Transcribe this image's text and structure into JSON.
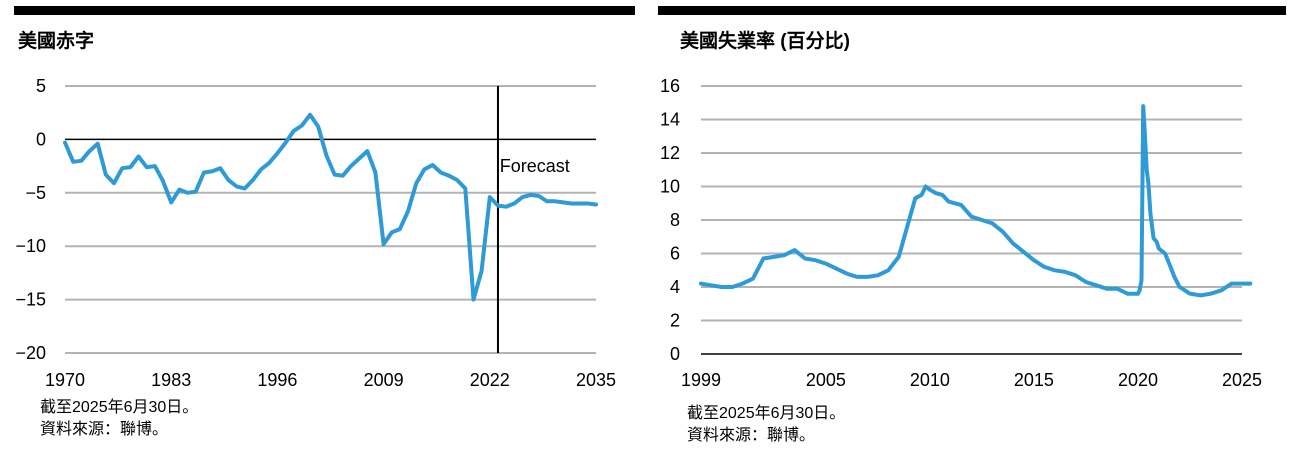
{
  "charts": [
    {
      "title": "美國赤字",
      "notes": [
        "截至2025年6月30日。",
        "資料來源：聯博。"
      ],
      "annotation": "Forecast"
    },
    {
      "title": "美國失業率 (百分比)",
      "notes": [
        "截至2025年6月30日。",
        "資料來源：聯博。"
      ]
    }
  ],
  "colors": {
    "line": "#2e9ad6",
    "grid": "#b3b3b3",
    "bar": "#000000"
  },
  "chart_data": [
    {
      "type": "line",
      "title": "美國赤字",
      "xlabel": "",
      "ylabel": "",
      "xlim": [
        1970,
        2035
      ],
      "ylim": [
        -20,
        5
      ],
      "xticks": [
        1970,
        1983,
        1996,
        2009,
        2022,
        2035
      ],
      "yticks": [
        5,
        0,
        -5,
        -10,
        -15,
        -20
      ],
      "ytick_labels": [
        "5",
        "0",
        "−5",
        "−10",
        "−15",
        "−20"
      ],
      "grid": true,
      "forecast_line_x": 2023,
      "annotations": [
        {
          "text": "Forecast",
          "x": 2027.5,
          "y": -2.5
        }
      ],
      "series": [
        {
          "x": [
            1970,
            1971,
            1972,
            1973,
            1974,
            1975,
            1976,
            1977,
            1978,
            1979,
            1980,
            1981,
            1982,
            1983,
            1984,
            1985,
            1986,
            1987,
            1988,
            1989,
            1990,
            1991,
            1992,
            1993,
            1994,
            1995,
            1996,
            1997,
            1998,
            1999,
            2000,
            2001,
            2002,
            2003,
            2004,
            2005,
            2006,
            2007,
            2008,
            2009,
            2010,
            2011,
            2012,
            2013,
            2014,
            2015,
            2016,
            2017,
            2018,
            2019,
            2020,
            2021,
            2022,
            2023,
            2024,
            2025,
            2026,
            2027,
            2028,
            2029,
            2030,
            2031,
            2032,
            2033,
            2034,
            2035
          ],
          "values": [
            -0.3,
            -2.1,
            -2.0,
            -1.1,
            -0.4,
            -3.3,
            -4.1,
            -2.7,
            -2.6,
            -1.6,
            -2.6,
            -2.5,
            -3.9,
            -5.9,
            -4.7,
            -5.0,
            -4.9,
            -3.1,
            -3.0,
            -2.7,
            -3.8,
            -4.4,
            -4.6,
            -3.8,
            -2.8,
            -2.2,
            -1.3,
            -0.3,
            0.8,
            1.3,
            2.3,
            1.2,
            -1.5,
            -3.3,
            -3.4,
            -2.5,
            -1.8,
            -1.1,
            -3.1,
            -9.8,
            -8.7,
            -8.4,
            -6.7,
            -4.1,
            -2.8,
            -2.4,
            -3.1,
            -3.4,
            -3.8,
            -4.6,
            -15.0,
            -12.3,
            -5.4,
            -6.2,
            -6.3,
            -6.0,
            -5.4,
            -5.2,
            -5.3,
            -5.8,
            -5.8,
            -5.9,
            -6.0,
            -6.0,
            -6.0,
            -6.1
          ]
        }
      ]
    },
    {
      "type": "line",
      "title": "美國失業率 (百分比)",
      "xlabel": "",
      "ylabel": "",
      "xlim": [
        1999,
        2025
      ],
      "ylim": [
        0,
        16
      ],
      "xticks": [
        1999,
        2005,
        2010,
        2015,
        2020,
        2025
      ],
      "yticks": [
        0,
        2,
        4,
        6,
        8,
        10,
        12,
        14,
        16
      ],
      "grid": true,
      "series": [
        {
          "x": [
            1999.0,
            1999.5,
            2000.0,
            2000.5,
            2001.0,
            2001.5,
            2002.0,
            2002.5,
            2003.0,
            2003.5,
            2004.0,
            2004.5,
            2005.0,
            2005.5,
            2006.0,
            2006.5,
            2007.0,
            2007.5,
            2008.0,
            2008.5,
            2009.0,
            2009.3,
            2009.6,
            2009.8,
            2010.0,
            2010.3,
            2010.6,
            2010.9,
            2011.2,
            2011.5,
            2012.0,
            2012.5,
            2013.0,
            2013.5,
            2014.0,
            2014.5,
            2015.0,
            2015.5,
            2016.0,
            2016.5,
            2017.0,
            2017.5,
            2018.0,
            2018.5,
            2019.0,
            2019.5,
            2020.0,
            2020.08,
            2020.17,
            2020.25,
            2020.33,
            2020.42,
            2020.5,
            2020.6,
            2020.75,
            2020.9,
            2021.0,
            2021.3,
            2021.5,
            2021.75,
            2022.0,
            2022.5,
            2023.0,
            2023.5,
            2024.0,
            2024.5,
            2025.0,
            2025.4
          ],
          "values": [
            4.2,
            4.1,
            4.0,
            4.0,
            4.2,
            4.5,
            5.7,
            5.8,
            5.9,
            6.2,
            5.7,
            5.6,
            5.4,
            5.1,
            4.8,
            4.6,
            4.6,
            4.7,
            5.0,
            5.8,
            8.0,
            9.3,
            9.5,
            10.0,
            9.8,
            9.6,
            9.5,
            9.1,
            9.0,
            8.9,
            8.2,
            8.0,
            7.8,
            7.3,
            6.6,
            6.1,
            5.6,
            5.2,
            5.0,
            4.9,
            4.7,
            4.3,
            4.1,
            3.9,
            3.9,
            3.6,
            3.6,
            3.8,
            4.4,
            14.8,
            13.2,
            11.0,
            10.2,
            8.4,
            6.9,
            6.7,
            6.3,
            6.0,
            5.4,
            4.6,
            4.0,
            3.6,
            3.5,
            3.6,
            3.8,
            4.2,
            4.2,
            4.2
          ]
        }
      ]
    }
  ]
}
